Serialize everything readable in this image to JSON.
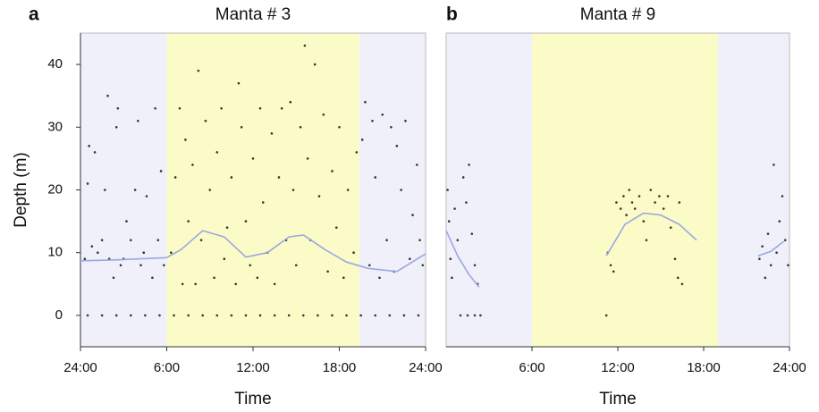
{
  "chart_data": [
    {
      "type": "scatter",
      "panel": "a",
      "title": "Manta # 3",
      "xlabel": "Time",
      "ylabel": "Depth (m)",
      "xlim": [
        0,
        24
      ],
      "ylim": [
        -5,
        45
      ],
      "xticks": [
        {
          "value": 0,
          "label": "24:00"
        },
        {
          "value": 6,
          "label": "6:00"
        },
        {
          "value": 12,
          "label": "12:00"
        },
        {
          "value": 18,
          "label": "18:00"
        },
        {
          "value": 24,
          "label": "24:00"
        }
      ],
      "yticks": [
        0,
        10,
        20,
        30,
        40
      ],
      "background": "#f0f0fa",
      "shaded_regions": [
        {
          "start": 6,
          "end": 19.4,
          "color": "#fbfbc8"
        }
      ],
      "series": [
        {
          "type": "scatter",
          "color": "#333333",
          "x": [
            0.3,
            0.5,
            0.6,
            0.8,
            1,
            1.2,
            1.5,
            1.7,
            1.9,
            2,
            2.3,
            2.5,
            2.6,
            2.8,
            3,
            3.2,
            3.5,
            3.8,
            4,
            4.2,
            4.4,
            4.6,
            5,
            5.2,
            5.4,
            5.6,
            5.8,
            6.3,
            6.6,
            6.9,
            7.1,
            7.3,
            7.5,
            7.8,
            8,
            8.2,
            8.4,
            8.7,
            9,
            9.3,
            9.5,
            9.8,
            10,
            10.2,
            10.5,
            10.8,
            11,
            11.2,
            11.5,
            11.8,
            12,
            12.3,
            12.5,
            12.7,
            13,
            13.3,
            13.5,
            13.8,
            14,
            14.3,
            14.6,
            14.8,
            15,
            15.3,
            15.6,
            15.8,
            16,
            16.3,
            16.6,
            16.9,
            17.2,
            17.5,
            17.8,
            18,
            18.3,
            18.6,
            19,
            19.2,
            19.6,
            19.8,
            20.1,
            20.3,
            20.5,
            20.8,
            21,
            21.3,
            21.6,
            21.8,
            22,
            22.3,
            22.6,
            22.9,
            23.1,
            23.4,
            23.6,
            23.8,
            0.5,
            1.5,
            2.5,
            3.5,
            4.5,
            5.5,
            6.5,
            7.5,
            8.5,
            9.5,
            10.5,
            11.5,
            12.5,
            13.5,
            14.5,
            15.5,
            16.5,
            17.5,
            18.5,
            19.5,
            20.5,
            21.5,
            22.5,
            23.5
          ],
          "y": [
            9,
            21,
            27,
            11,
            26,
            10,
            12,
            20,
            35,
            9,
            6,
            30,
            33,
            8,
            9,
            15,
            12,
            20,
            31,
            8,
            10,
            19,
            6,
            33,
            12,
            23,
            8,
            10,
            22,
            33,
            5,
            28,
            15,
            24,
            5,
            39,
            12,
            31,
            20,
            6,
            26,
            33,
            9,
            14,
            22,
            5,
            37,
            30,
            15,
            8,
            25,
            6,
            33,
            18,
            10,
            29,
            5,
            22,
            33,
            12,
            34,
            20,
            8,
            30,
            43,
            25,
            12,
            40,
            19,
            32,
            7,
            23,
            14,
            30,
            6,
            20,
            10,
            26,
            28,
            34,
            8,
            31,
            22,
            6,
            32,
            12,
            30,
            7,
            27,
            20,
            31,
            9,
            16,
            24,
            12,
            8,
            0,
            0,
            0,
            0,
            0,
            0,
            0,
            0,
            0,
            0,
            0,
            0,
            0,
            0,
            0,
            0,
            0,
            0,
            0,
            0,
            0,
            0,
            0,
            0
          ]
        },
        {
          "type": "line",
          "color": "#9aa8e0",
          "x": [
            0,
            2,
            4,
            6,
            7,
            8.5,
            10,
            11.5,
            13,
            14.5,
            15.5,
            17,
            18.5,
            20,
            22,
            24
          ],
          "y": [
            8.7,
            8.8,
            9,
            9.2,
            10.5,
            13.5,
            12.5,
            9.3,
            10,
            12.5,
            12.8,
            10.5,
            8.5,
            7.5,
            7,
            9.8
          ]
        }
      ]
    },
    {
      "type": "scatter",
      "panel": "b",
      "title": "Manta # 9",
      "xlabel": "Time",
      "xlim": [
        0,
        24
      ],
      "ylim": [
        -5,
        45
      ],
      "xticks": [
        {
          "value": 6,
          "label": "6:00"
        },
        {
          "value": 12,
          "label": "12:00"
        },
        {
          "value": 18,
          "label": "18:00"
        },
        {
          "value": 24,
          "label": "24:00"
        }
      ],
      "background": "#f0f0fa",
      "shaded_regions": [
        {
          "start": 6,
          "end": 19,
          "color": "#fbfbc8"
        }
      ],
      "series": [
        {
          "type": "scatter",
          "color": "#333333",
          "x": [
            0.1,
            0.2,
            0.3,
            0.4,
            0.6,
            0.8,
            1,
            1.2,
            1.4,
            1.6,
            1.8,
            2,
            2.2,
            1.5,
            2,
            2.4,
            11.2,
            11.3,
            11.5,
            11.7,
            11.9,
            12.2,
            12.4,
            12.6,
            12.8,
            13,
            13.2,
            13.5,
            13.8,
            14,
            14.3,
            14.6,
            14.9,
            15.2,
            15.5,
            15.7,
            16,
            16.2,
            16.5,
            16.3,
            21.9,
            22.1,
            22.3,
            22.5,
            22.7,
            22.9,
            23.1,
            23.3,
            23.5,
            23.7,
            23.9
          ],
          "y": [
            20,
            15,
            9,
            6,
            17,
            12,
            0,
            22,
            18,
            24,
            13,
            8,
            5,
            0,
            0,
            0,
            0,
            10,
            8,
            7,
            18,
            17,
            19,
            16,
            20,
            18,
            17,
            19,
            15,
            12,
            20,
            18,
            19,
            17,
            19,
            14,
            9,
            6,
            5,
            18,
            9,
            11,
            6,
            13,
            8,
            24,
            10,
            15,
            19,
            12,
            8
          ]
        },
        {
          "type": "line",
          "color": "#9aa8e0",
          "x": [
            0,
            0.8,
            1.6,
            2.3,
            null,
            11.2,
            12.5,
            13.8,
            15,
            16.3,
            17.5,
            null,
            21.8,
            22.7,
            23.6
          ],
          "y": [
            13.5,
            9.5,
            6.5,
            4.5,
            null,
            9.5,
            14.5,
            16.3,
            16,
            14.5,
            12,
            null,
            9.5,
            10.2,
            11.8
          ]
        }
      ]
    }
  ],
  "panel_letters": [
    "a",
    "b"
  ]
}
